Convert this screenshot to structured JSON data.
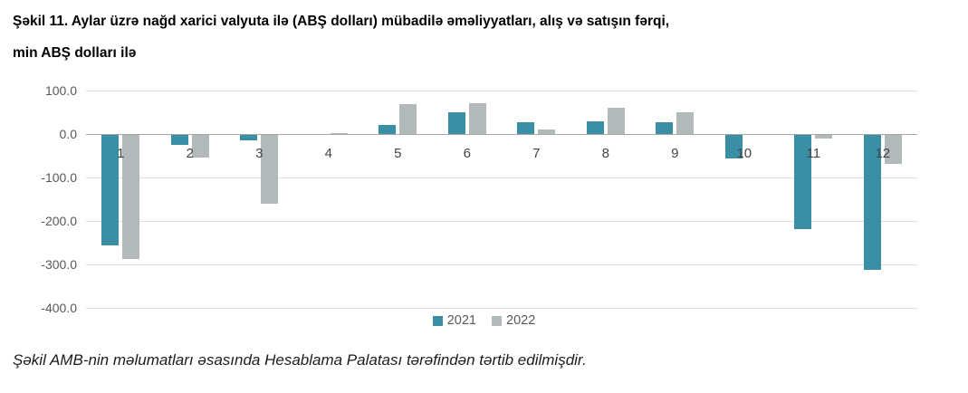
{
  "title": {
    "line1": "Şəkil 11. Aylar üzrə nağd xarici valyuta ilə (ABŞ dolları) mübadilə əməliyyatları, alış və satışın fərqi,",
    "line2": "min ABŞ dolları ilə"
  },
  "footer": "Şəkil AMB-nin məlumatları əsasında Hesablama Palatası tərəfindən tərtib edilmişdir.",
  "chart_data": {
    "type": "bar",
    "title": "Şəkil 11. Aylar üzrə nağd xarici valyuta ilə (ABŞ dolları) mübadilə əməliyyatları, alış və satışın fərqi, min ABŞ dolları ilə",
    "categories": [
      "1",
      "2",
      "3",
      "4",
      "5",
      "6",
      "7",
      "8",
      "9",
      "10",
      "11",
      "12"
    ],
    "series": [
      {
        "name": "2021",
        "color": "#3a8fa4",
        "values": [
          -255,
          -24,
          -13,
          0,
          20,
          51,
          26,
          30,
          26,
          -55,
          -218,
          -312
        ]
      },
      {
        "name": "2022",
        "color": "#b1b9bb",
        "values": [
          -287,
          -52,
          -158,
          3,
          68,
          71,
          10,
          61,
          49,
          0,
          -9,
          -67
        ]
      }
    ],
    "ylim": [
      -400,
      100
    ],
    "yticks": [
      100,
      0,
      -100,
      -200,
      -300,
      -400
    ],
    "ytick_labels": [
      "100.0",
      "0.0",
      "-100.0",
      "-200.0",
      "-300.0",
      "-400.0"
    ],
    "grid": true,
    "legend_position": "bottom",
    "axis_label_color": "#595959",
    "x_label_color": "#444444",
    "gridline_color": "#dcdcdc",
    "zero_line_color": "#a6a6a6"
  }
}
